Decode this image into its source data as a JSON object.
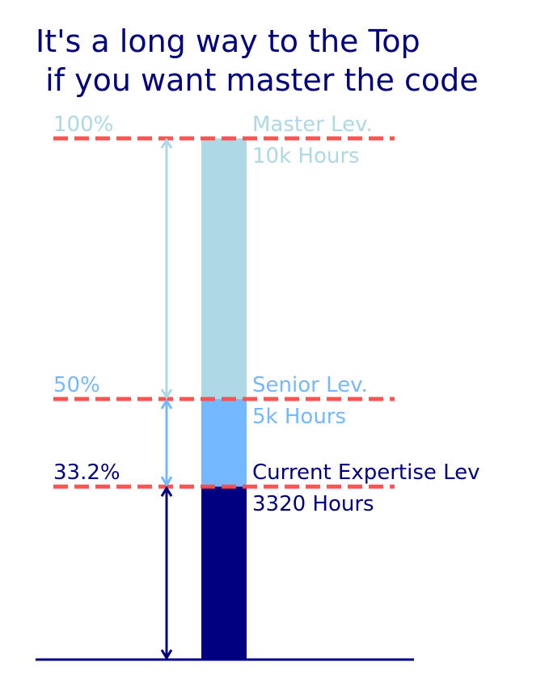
{
  "chart_data": {
    "type": "bar",
    "title": [
      "It's a long way to the Top",
      " if you want master the code"
    ],
    "xlabel": "",
    "ylabel": "",
    "ylim": [
      0,
      100
    ],
    "grid": false,
    "axes_visible": false,
    "target_hours": 10000,
    "segments": [
      {
        "from": 0,
        "to": 33.2,
        "color": "#000080"
      },
      {
        "from": 33.2,
        "to": 50,
        "color": "#74b9ff"
      },
      {
        "from": 50,
        "to": 100,
        "color": "#add8e6"
      }
    ],
    "levels": [
      {
        "value": 100,
        "percent_label": "100%",
        "name": "Master Lev.",
        "hours_label": "10k Hours",
        "color": "#add8e6"
      },
      {
        "value": 50,
        "percent_label": "50%",
        "name": "Senior Lev.",
        "hours_label": "5k Hours",
        "color": "#74b9ff"
      },
      {
        "value": 33.2,
        "percent_label": "33.2%",
        "name": "Current Expertise Lev",
        "hours_label": "3320 Hours",
        "color": "#000080"
      }
    ],
    "arrows": [
      {
        "from": 50,
        "to": 100,
        "color": "#add8e6"
      },
      {
        "from": 33.2,
        "to": 50,
        "color": "#74b9ff"
      },
      {
        "from": 0,
        "to": 33.2,
        "color": "#000080"
      }
    ],
    "colors": {
      "title": "#000080",
      "threshold_line": "#ff4a4a",
      "baseline": "#000080"
    }
  }
}
